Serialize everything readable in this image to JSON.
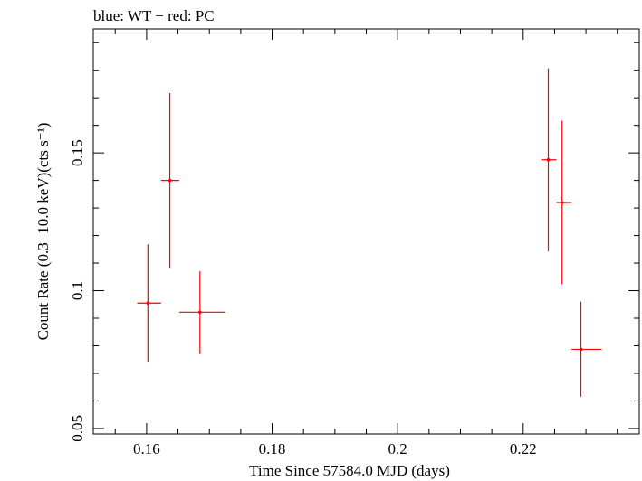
{
  "chart_data": {
    "type": "scatter",
    "title": "blue: WT − red: PC",
    "xlabel": "Time Since 57584.0 MJD (days)",
    "ylabel": "Count Rate (0.3−10.0 keV)(cts s⁻¹)",
    "xlim": [
      0.1515,
      0.2385
    ],
    "ylim": [
      0.048,
      0.195
    ],
    "x_ticks": [
      0.16,
      0.18,
      0.2,
      0.22
    ],
    "x_tick_labels": [
      "0.16",
      "0.18",
      "0.2",
      "0.22"
    ],
    "y_ticks": [
      0.05,
      0.1,
      0.15
    ],
    "y_tick_labels": [
      "0.05",
      "0.1",
      "0.15"
    ],
    "grid": false,
    "series": [
      {
        "color": "#ff0000",
        "points": [
          {
            "x": 0.1602,
            "y": 0.0955,
            "xlo": 0.1585,
            "xhi": 0.1623,
            "ylo": 0.0742,
            "yhi": 0.1168
          },
          {
            "x": 0.1637,
            "y": 0.14,
            "xlo": 0.1623,
            "xhi": 0.1652,
            "ylo": 0.1083,
            "yhi": 0.1717
          },
          {
            "x": 0.1685,
            "y": 0.0922,
            "xlo": 0.1652,
            "xhi": 0.1725,
            "ylo": 0.0771,
            "yhi": 0.107
          },
          {
            "x": 0.224,
            "y": 0.1475,
            "xlo": 0.223,
            "xhi": 0.2253,
            "ylo": 0.1143,
            "yhi": 0.1807
          },
          {
            "x": 0.2262,
            "y": 0.132,
            "xlo": 0.2253,
            "xhi": 0.2277,
            "ylo": 0.1023,
            "yhi": 0.1617
          },
          {
            "x": 0.2292,
            "y": 0.0787,
            "xlo": 0.2277,
            "xhi": 0.2325,
            "ylo": 0.0615,
            "yhi": 0.096
          }
        ]
      }
    ]
  }
}
